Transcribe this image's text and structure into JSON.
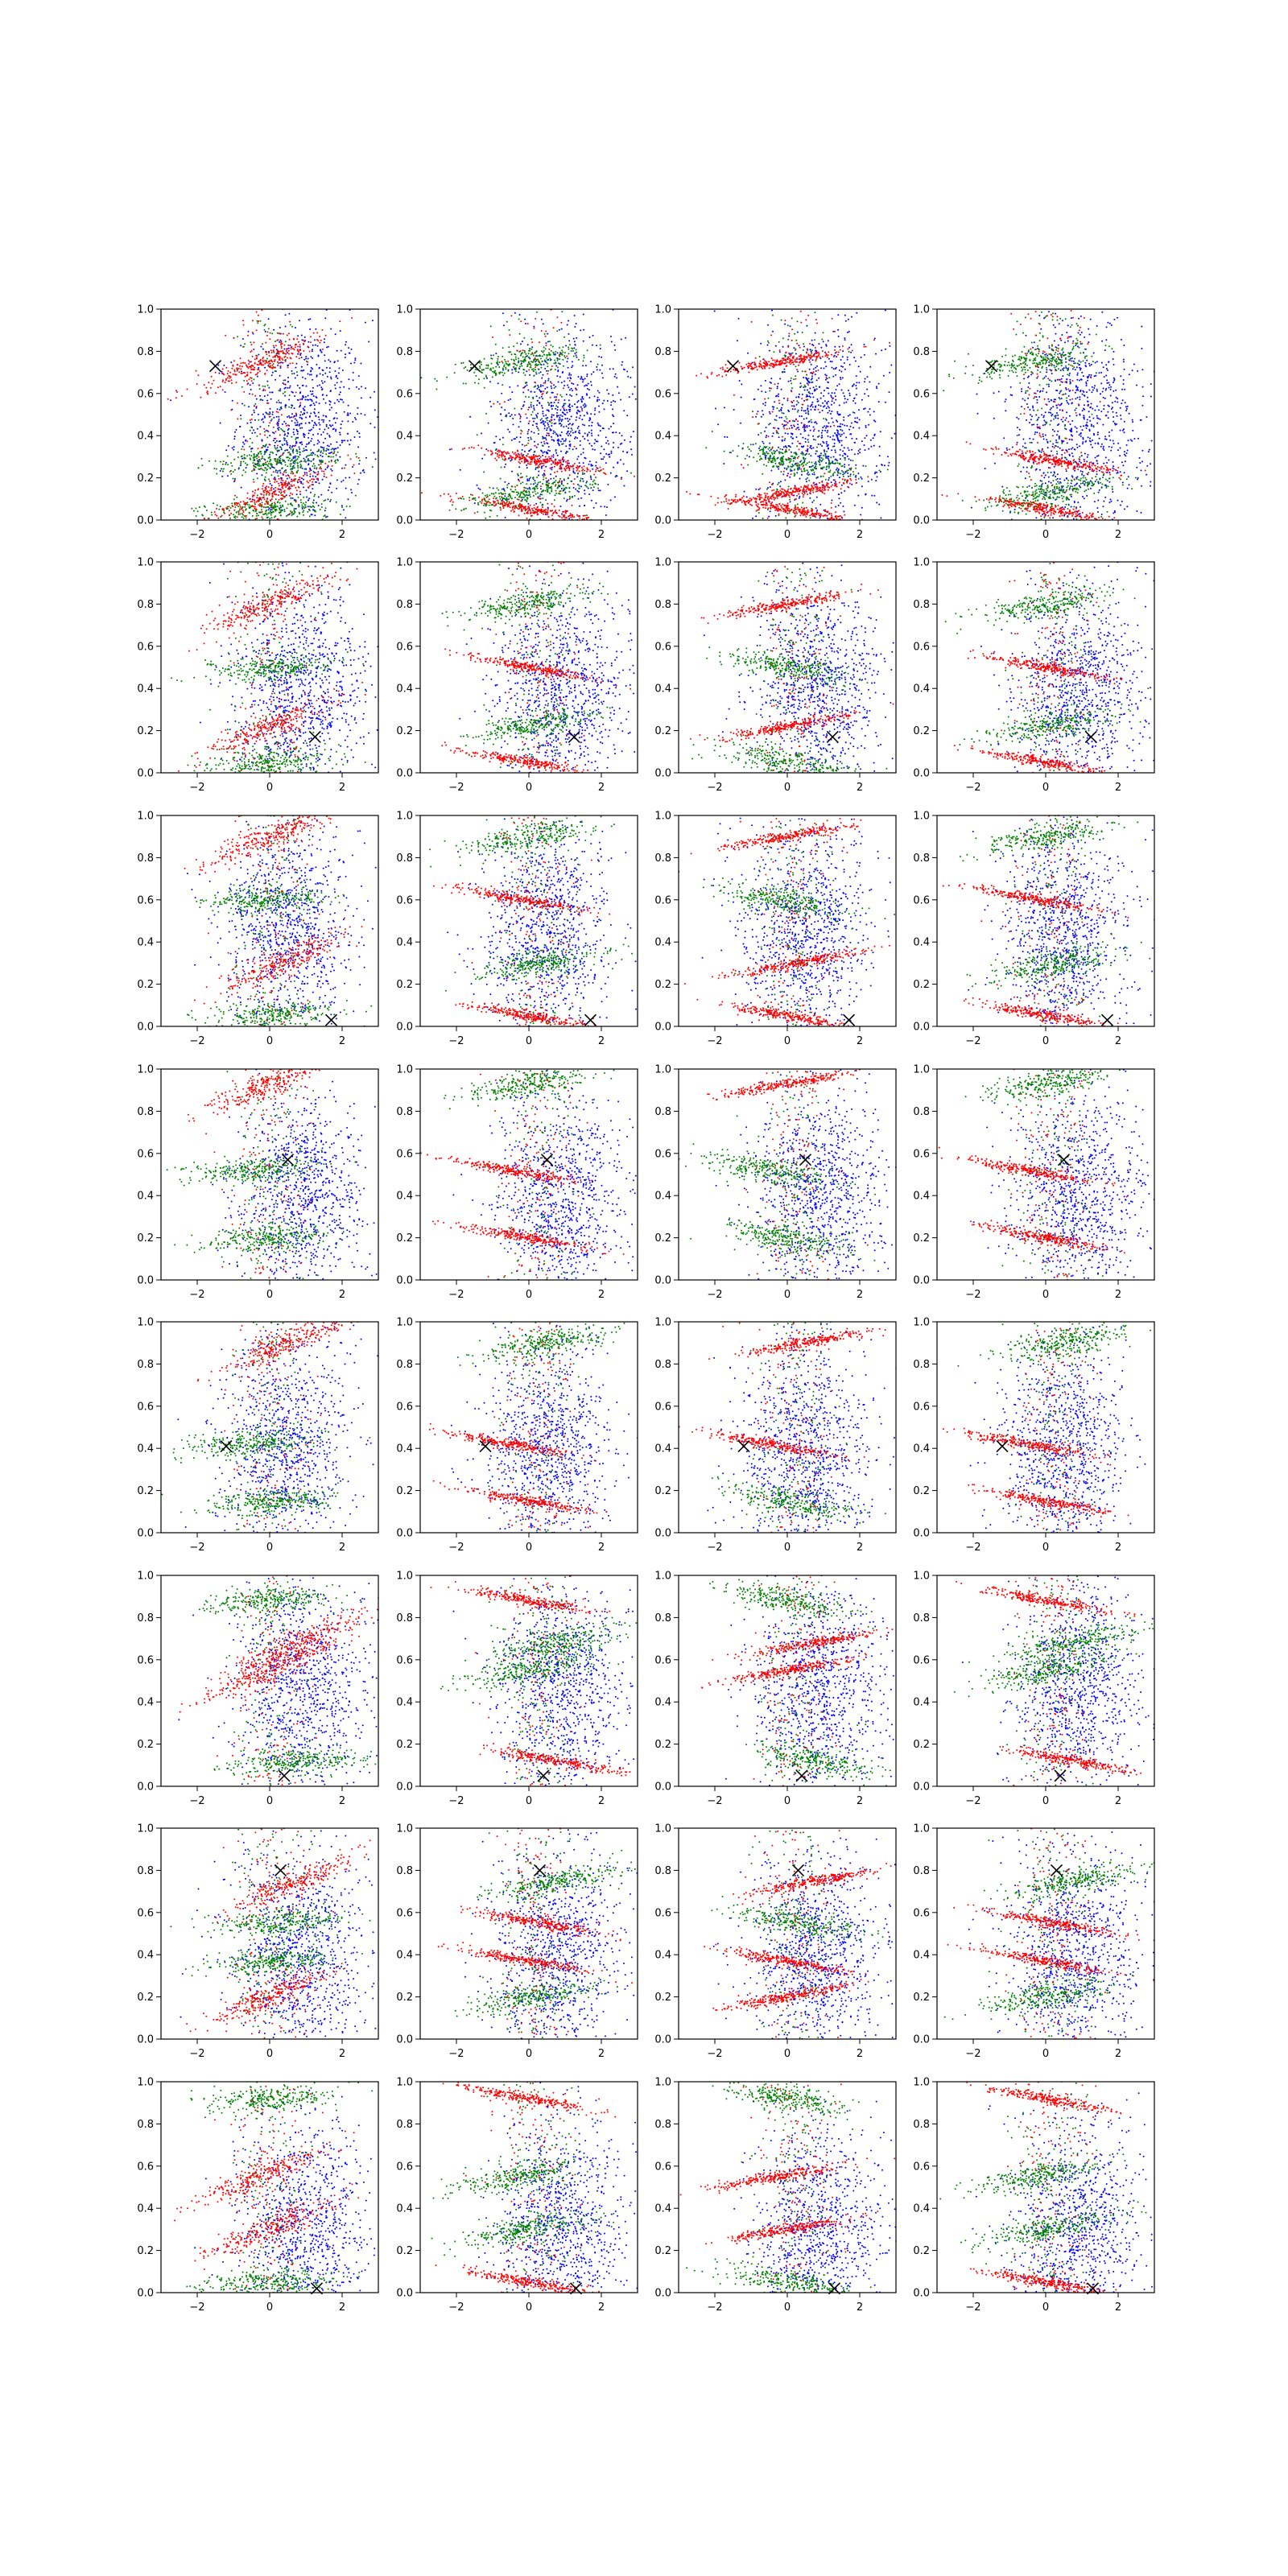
{
  "figure": {
    "rows": 8,
    "cols": 4,
    "colors": {
      "blue": "#0000ff",
      "green": "#008000",
      "red": "#ff0000",
      "marker": "#000000",
      "axes": "#000000"
    }
  },
  "chart_data": {
    "type": "scatter",
    "layout": "8x4 grid of scatter subplots",
    "xlim": [
      -3,
      3
    ],
    "ylim": [
      0,
      1
    ],
    "x_ticks": [
      -2,
      0,
      2
    ],
    "x_tick_labels": [
      "−2",
      "0",
      "2"
    ],
    "y_ticks": [
      0.0,
      0.2,
      0.4,
      0.6,
      0.8,
      1.0
    ],
    "y_tick_labels": [
      "0.0",
      "0.2",
      "0.4",
      "0.6",
      "0.8",
      "1.0"
    ],
    "grid": false,
    "legend": "none",
    "series_colors": [
      "#0000ff",
      "#008000",
      "#ff0000"
    ],
    "rows": [
      {
        "marker": [
          -1.5,
          0.73
        ],
        "blue_center": [
          0.9,
          0.45
        ],
        "green_bands": [
          [
            0.05,
            0.05
          ],
          [
            0.08,
            0.13
          ],
          [
            0.25,
            0.28
          ],
          [
            -0.2,
            0.75
          ]
        ],
        "red_bands": [
          [
            0.05,
            0.05
          ],
          [
            0.08,
            0.13
          ],
          [
            0.25,
            0.28
          ],
          [
            -0.2,
            0.75
          ]
        ]
      },
      {
        "marker": [
          1.25,
          0.17
        ],
        "blue_center": [
          0.9,
          0.4
        ],
        "green_bands": [
          [
            0.0,
            0.05
          ],
          [
            0.0,
            0.22
          ],
          [
            0.0,
            0.5
          ],
          [
            0.0,
            0.8
          ]
        ],
        "red_bands": [
          [
            0.0,
            0.05
          ],
          [
            0.0,
            0.22
          ],
          [
            0.0,
            0.5
          ],
          [
            0.0,
            0.8
          ]
        ]
      },
      {
        "marker": [
          1.7,
          0.03
        ],
        "blue_center": [
          0.5,
          0.45
        ],
        "green_bands": [
          [
            0.0,
            0.05
          ],
          [
            0.3,
            0.3
          ],
          [
            -0.2,
            0.6
          ],
          [
            0.0,
            0.9
          ]
        ],
        "red_bands": [
          [
            0.0,
            0.05
          ],
          [
            0.3,
            0.3
          ],
          [
            -0.2,
            0.6
          ],
          [
            0.0,
            0.9
          ]
        ]
      },
      {
        "marker": [
          0.5,
          0.57
        ],
        "blue_center": [
          0.9,
          0.4
        ],
        "green_bands": [
          [
            -0.5,
            0.52
          ],
          [
            0.0,
            0.93
          ],
          [
            0.0,
            0.2
          ]
        ],
        "red_bands": [
          [
            -0.5,
            0.52
          ],
          [
            0.0,
            0.93
          ],
          [
            0.0,
            0.2
          ]
        ]
      },
      {
        "marker": [
          -1.2,
          0.41
        ],
        "blue_center": [
          0.5,
          0.4
        ],
        "green_bands": [
          [
            -0.5,
            0.42
          ],
          [
            0.5,
            0.9
          ],
          [
            0.0,
            0.15
          ]
        ],
        "red_bands": [
          [
            -0.5,
            0.42
          ],
          [
            0.5,
            0.9
          ],
          [
            0.0,
            0.15
          ]
        ]
      },
      {
        "marker": [
          0.4,
          0.05
        ],
        "blue_center": [
          0.9,
          0.45
        ],
        "green_bands": [
          [
            0.8,
            0.12
          ],
          [
            0.8,
            0.68
          ],
          [
            0.0,
            0.88
          ],
          [
            0.0,
            0.55
          ]
        ],
        "red_bands": [
          [
            0.8,
            0.12
          ],
          [
            0.8,
            0.68
          ],
          [
            0.0,
            0.88
          ],
          [
            0.0,
            0.55
          ]
        ]
      },
      {
        "marker": [
          0.3,
          0.8
        ],
        "blue_center": [
          0.8,
          0.4
        ],
        "green_bands": [
          [
            0.0,
            0.37
          ],
          [
            0.8,
            0.75
          ],
          [
            0.3,
            0.55
          ],
          [
            0.0,
            0.2
          ]
        ],
        "red_bands": [
          [
            0.0,
            0.37
          ],
          [
            0.8,
            0.75
          ],
          [
            0.3,
            0.55
          ],
          [
            0.0,
            0.2
          ]
        ]
      },
      {
        "marker": [
          1.3,
          0.02
        ],
        "blue_center": [
          0.9,
          0.3
        ],
        "green_bands": [
          [
            0.0,
            0.05
          ],
          [
            -0.3,
            0.55
          ],
          [
            0.0,
            0.92
          ],
          [
            0.0,
            0.3
          ]
        ],
        "red_bands": [
          [
            0.0,
            0.05
          ],
          [
            -0.3,
            0.55
          ],
          [
            0.0,
            0.92
          ],
          [
            0.0,
            0.3
          ]
        ]
      }
    ]
  }
}
